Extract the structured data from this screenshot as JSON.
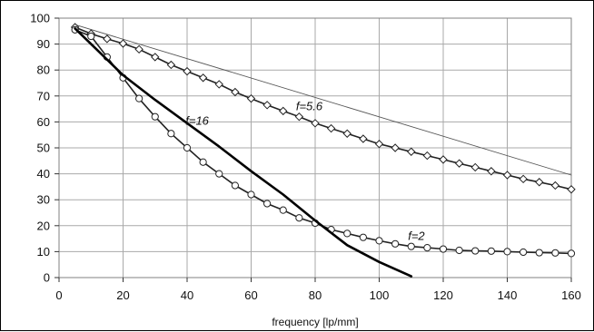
{
  "chart_data": {
    "type": "line",
    "title": "",
    "xlabel": "frequency  [lp/mm]",
    "ylabel": "",
    "xlim": [
      0,
      160
    ],
    "ylim": [
      0,
      100
    ],
    "xticks": [
      0,
      20,
      40,
      60,
      80,
      100,
      120,
      140,
      160
    ],
    "yticks": [
      0,
      10,
      20,
      30,
      40,
      50,
      60,
      70,
      80,
      90,
      100
    ],
    "grid": true,
    "legend": "none (labels placed on curves)",
    "series": [
      {
        "name": "",
        "style": "thin-line",
        "color": "#555555",
        "x": [
          5,
          160
        ],
        "y": [
          97.5,
          39.5
        ]
      },
      {
        "name": "f=5.6",
        "style": "line-diamond-markers",
        "color": "#222222",
        "x": [
          5,
          10,
          15,
          20,
          25,
          30,
          35,
          40,
          45,
          50,
          55,
          60,
          65,
          70,
          75,
          80,
          85,
          90,
          95,
          100,
          105,
          110,
          115,
          120,
          125,
          130,
          135,
          140,
          145,
          150,
          155,
          160
        ],
        "y": [
          96.5,
          94,
          92,
          90.2,
          88,
          85,
          82,
          79.5,
          77,
          74.5,
          71.5,
          69,
          66.5,
          64.2,
          62,
          59.5,
          57.5,
          55.5,
          53.5,
          51.5,
          50,
          48.5,
          47,
          45.5,
          44,
          42.5,
          41,
          39.5,
          38,
          36.8,
          35.5,
          34
        ]
      },
      {
        "name": "f=2",
        "style": "line-circle-markers",
        "color": "#222222",
        "x": [
          5,
          10,
          15,
          20,
          25,
          30,
          35,
          40,
          45,
          50,
          55,
          60,
          65,
          70,
          75,
          80,
          85,
          90,
          95,
          100,
          105,
          110,
          115,
          120,
          125,
          130,
          135,
          140,
          145,
          150,
          155,
          160
        ],
        "y": [
          95.5,
          93,
          85,
          77,
          69,
          62,
          55.5,
          50,
          44.5,
          40,
          35.5,
          32,
          28.5,
          26,
          23,
          21,
          18.5,
          17,
          15.5,
          14.2,
          13,
          12,
          11.5,
          11,
          10.5,
          10.3,
          10.2,
          10,
          9.8,
          9.6,
          9.5,
          9.3
        ]
      },
      {
        "name": "f=16",
        "style": "thick-line",
        "color": "#000000",
        "x": [
          5,
          10,
          20,
          30,
          40,
          50,
          60,
          70,
          80,
          90,
          100,
          110
        ],
        "y": [
          96,
          90,
          78,
          68.5,
          59.5,
          50.5,
          41,
          32,
          22,
          12.5,
          6,
          0.5
        ]
      }
    ],
    "annotations": [
      {
        "text": "f=5.6",
        "x": 74,
        "y": 64.5
      },
      {
        "text": "f=16",
        "x": 39.5,
        "y": 59
      },
      {
        "text": "f=2",
        "x": 109,
        "y": 14.5
      }
    ]
  }
}
